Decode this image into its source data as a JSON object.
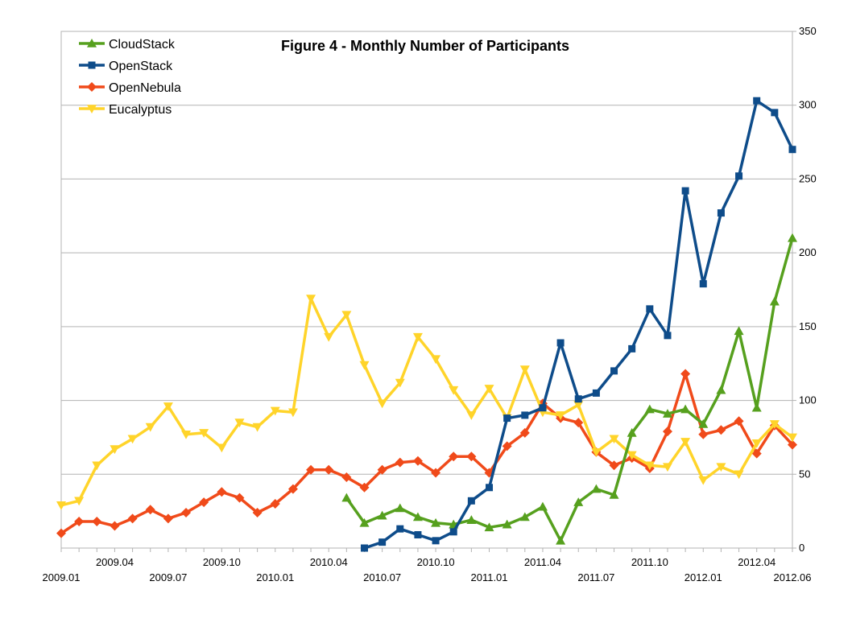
{
  "chart_data": {
    "type": "line",
    "title": "Figure 4 - Monthly Number of Participants",
    "xlabel": "",
    "ylabel": "",
    "ylim": [
      0,
      350
    ],
    "yticks": [
      0,
      50,
      100,
      150,
      200,
      250,
      300,
      350
    ],
    "grid": true,
    "legend_position": "top-left",
    "x": [
      "2009.01",
      "2009.02",
      "2009.03",
      "2009.04",
      "2009.05",
      "2009.06",
      "2009.07",
      "2009.08",
      "2009.09",
      "2009.10",
      "2009.11",
      "2009.12",
      "2010.01",
      "2010.02",
      "2010.03",
      "2010.04",
      "2010.05",
      "2010.06",
      "2010.07",
      "2010.08",
      "2010.09",
      "2010.10",
      "2010.11",
      "2010.12",
      "2011.01",
      "2011.02",
      "2011.03",
      "2011.04",
      "2011.05",
      "2011.06",
      "2011.07",
      "2011.08",
      "2011.09",
      "2011.10",
      "2011.11",
      "2011.12",
      "2012.01",
      "2012.02",
      "2012.03",
      "2012.04",
      "2012.05",
      "2012.06"
    ],
    "xtick_labels_upper": [
      "2009.04",
      "2009.10",
      "2010.04",
      "2010.10",
      "2011.04",
      "2011.10",
      "2012.04"
    ],
    "xtick_labels_lower": [
      "2009.01",
      "2009.07",
      "2010.01",
      "2010.07",
      "2011.01",
      "2011.07",
      "2012.01",
      "2012.06"
    ],
    "series": [
      {
        "name": "CloudStack",
        "color": "#56A01E",
        "marker": "triangle-up",
        "values": [
          null,
          null,
          null,
          null,
          null,
          null,
          null,
          null,
          null,
          null,
          null,
          null,
          null,
          null,
          null,
          null,
          34,
          17,
          22,
          27,
          21,
          17,
          16,
          19,
          14,
          16,
          21,
          28,
          5,
          31,
          40,
          36,
          78,
          94,
          91,
          94,
          84,
          107,
          147,
          95,
          167,
          210
        ]
      },
      {
        "name": "OpenStack",
        "color": "#0E4C8A",
        "marker": "square",
        "values": [
          null,
          null,
          null,
          null,
          null,
          null,
          null,
          null,
          null,
          null,
          null,
          null,
          null,
          null,
          null,
          null,
          null,
          0,
          4,
          13,
          9,
          5,
          11,
          32,
          41,
          88,
          90,
          95,
          139,
          101,
          105,
          120,
          135,
          162,
          144,
          242,
          179,
          227,
          252,
          303,
          295,
          270
        ]
      },
      {
        "name": "OpenNebula",
        "color": "#F04A1A",
        "marker": "diamond",
        "values": [
          10,
          18,
          18,
          15,
          20,
          26,
          20,
          24,
          31,
          38,
          34,
          24,
          30,
          40,
          53,
          53,
          48,
          41,
          53,
          58,
          59,
          51,
          62,
          62,
          51,
          69,
          78,
          98,
          88,
          85,
          65,
          56,
          61,
          54,
          79,
          118,
          77,
          80,
          86,
          64,
          83,
          70
        ]
      },
      {
        "name": "Eucalyptus",
        "color": "#FFD42A",
        "marker": "triangle-down",
        "values": [
          29,
          32,
          56,
          67,
          74,
          82,
          96,
          77,
          78,
          68,
          85,
          82,
          93,
          92,
          169,
          143,
          158,
          124,
          98,
          112,
          143,
          128,
          107,
          90,
          108,
          88,
          121,
          92,
          90,
          97,
          65,
          74,
          63,
          56,
          55,
          72,
          46,
          55,
          50,
          71,
          84,
          75
        ]
      }
    ]
  }
}
